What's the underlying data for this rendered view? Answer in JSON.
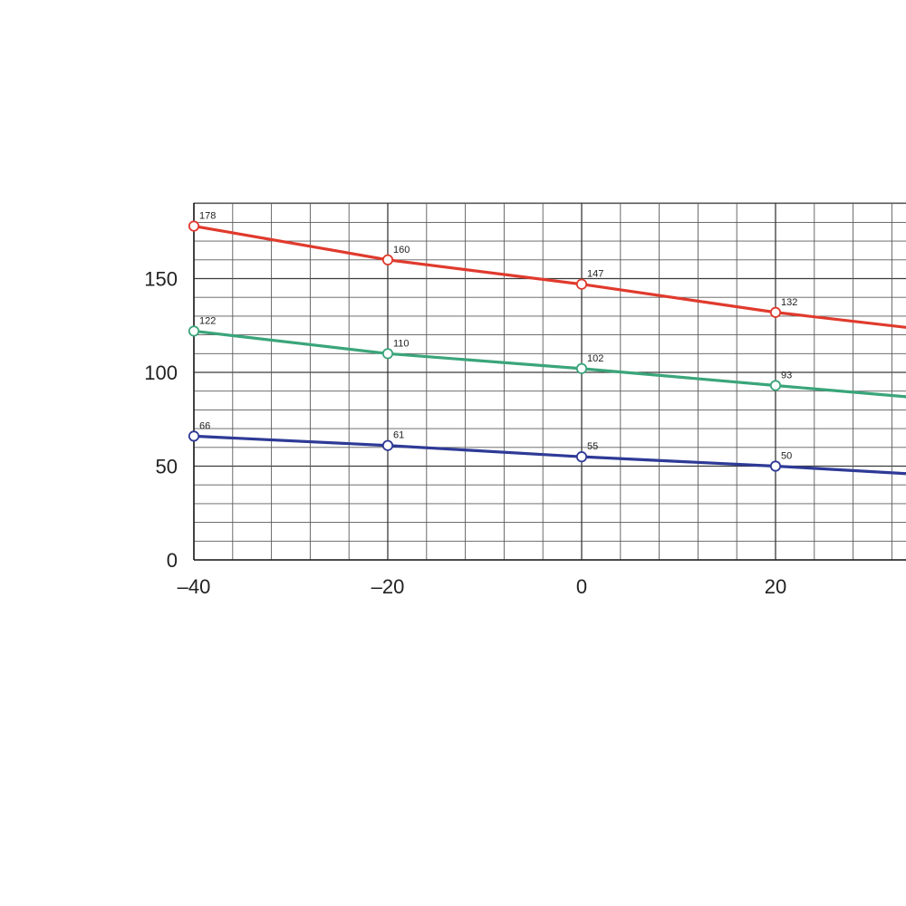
{
  "chart_data": {
    "type": "line",
    "title": "",
    "xlabel": "",
    "ylabel": "",
    "x": [
      -40,
      -20,
      0,
      20
    ],
    "x_ticks": [
      "–40",
      "–20",
      "0",
      "20"
    ],
    "y_ticks": [
      "0",
      "50",
      "100",
      "150"
    ],
    "xlim": [
      -40,
      33
    ],
    "ylim": [
      0,
      190
    ],
    "grid": true,
    "series": [
      {
        "color": "#e03a2d",
        "values": [
          178,
          160,
          147,
          132
        ],
        "labels": [
          "178",
          "160",
          "147",
          "132"
        ],
        "continues_to": 124
      },
      {
        "color": "#3aa57a",
        "values": [
          122,
          110,
          102,
          93
        ],
        "labels": [
          "122",
          "110",
          "102",
          "93"
        ],
        "continues_to": 87
      },
      {
        "color": "#2e3a96",
        "values": [
          66,
          61,
          55,
          50
        ],
        "labels": [
          "66",
          "61",
          "55",
          "50"
        ],
        "continues_to": 46
      }
    ]
  }
}
